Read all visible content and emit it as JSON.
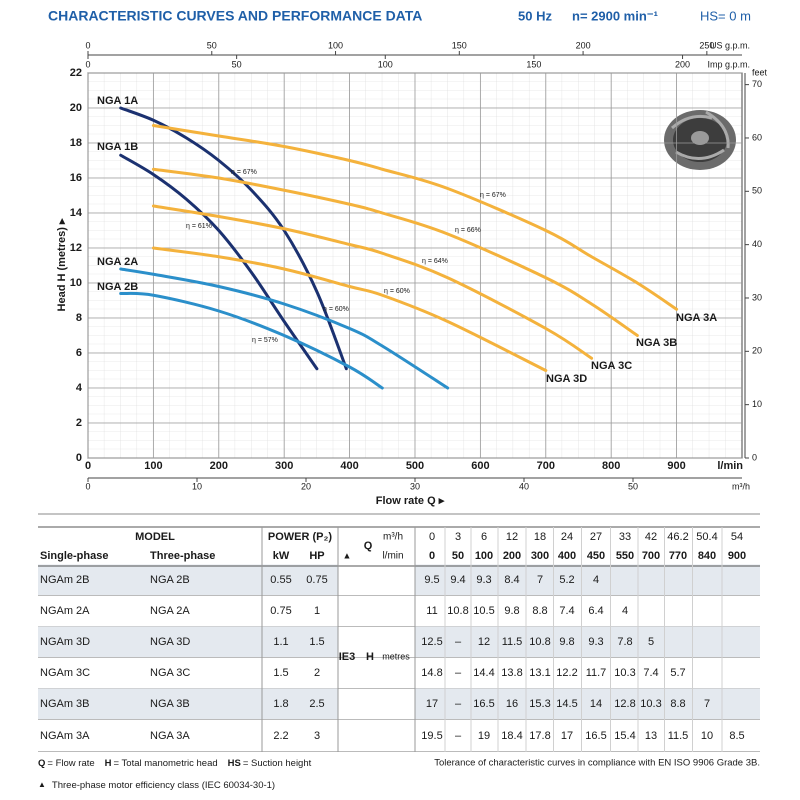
{
  "header": {
    "title": "CHARACTERISTIC CURVES AND PERFORMANCE DATA",
    "frequency": "50 Hz",
    "speed": "n= 2900 min⁻¹",
    "suction": "HS= 0 m"
  },
  "chart_data": {
    "type": "line",
    "xlabel": "Flow rate Q ▸",
    "ylabel": "Head H (metres) ▸",
    "x_unit": "l/min",
    "xlim": [
      0,
      1000
    ],
    "xticks": [
      0,
      100,
      200,
      300,
      400,
      500,
      600,
      700,
      800,
      900
    ],
    "ylim": [
      0,
      22
    ],
    "yticks": [
      0,
      2,
      4,
      6,
      8,
      10,
      12,
      14,
      16,
      18,
      20,
      22
    ],
    "grid": true,
    "secondary_axes": [
      {
        "label": "US g.p.m.",
        "side": "top",
        "lim": [
          0,
          264.2
        ],
        "ticks": [
          0,
          50,
          100,
          150,
          200,
          250
        ]
      },
      {
        "label": "Imp g.p.m.",
        "side": "top",
        "lim": [
          0,
          220
        ],
        "ticks": [
          0,
          50,
          100,
          150,
          200
        ]
      },
      {
        "label": "m³/h",
        "side": "bottom",
        "lim": [
          0,
          60
        ],
        "ticks": [
          0,
          10,
          20,
          30,
          40,
          50
        ]
      },
      {
        "label": "feet",
        "side": "right",
        "lim": [
          0,
          72.18
        ],
        "ticks": [
          0,
          10,
          20,
          30,
          40,
          50,
          60,
          70
        ]
      }
    ],
    "series": [
      {
        "name": "NGA 1A",
        "color": "#1b3170",
        "x": [
          50,
          100,
          150,
          200,
          250,
          300,
          350,
          395
        ],
        "values": [
          20,
          19.3,
          18.3,
          17,
          15.3,
          13,
          9.5,
          5.1
        ]
      },
      {
        "name": "NGA 1B",
        "color": "#1b3170",
        "x": [
          50,
          100,
          150,
          200,
          250,
          300,
          350
        ],
        "values": [
          17.3,
          16.2,
          14.8,
          13,
          10.6,
          7.8,
          5.1
        ]
      },
      {
        "name": "NGA 2A",
        "color": "#2b8fca",
        "x": [
          50,
          100,
          200,
          300,
          400,
          450,
          550
        ],
        "values": [
          10.8,
          10.5,
          9.8,
          8.8,
          7.4,
          6.4,
          4
        ]
      },
      {
        "name": "NGA 2B",
        "color": "#2b8fca",
        "x": [
          50,
          100,
          200,
          300,
          400,
          450
        ],
        "values": [
          9.4,
          9.3,
          8.4,
          7,
          5.2,
          4
        ]
      },
      {
        "name": "NGA 3A",
        "color": "#f4b23c",
        "x": [
          100,
          200,
          300,
          400,
          450,
          550,
          700,
          770,
          840,
          900
        ],
        "values": [
          19,
          18.4,
          17.8,
          17,
          16.5,
          15.4,
          13,
          11.5,
          10,
          8.5
        ]
      },
      {
        "name": "NGA 3B",
        "color": "#f4b23c",
        "x": [
          100,
          200,
          300,
          400,
          450,
          550,
          700,
          770,
          840
        ],
        "values": [
          16.5,
          16,
          15.3,
          14.5,
          14,
          12.8,
          10.3,
          8.8,
          7
        ]
      },
      {
        "name": "NGA 3C",
        "color": "#f4b23c",
        "x": [
          100,
          200,
          300,
          400,
          450,
          550,
          700,
          770
        ],
        "values": [
          14.4,
          13.8,
          13.1,
          12.2,
          11.7,
          10.3,
          7.4,
          5.7
        ]
      },
      {
        "name": "NGA 3D",
        "color": "#f4b23c",
        "x": [
          100,
          200,
          300,
          400,
          450,
          550,
          700
        ],
        "values": [
          12,
          11.5,
          10.8,
          9.8,
          9.3,
          7.8,
          5
        ]
      }
    ],
    "annotations": [
      "η = 67%",
      "η = 61%",
      "η = 60%",
      "η = 57%",
      "η = 67%",
      "η = 66%",
      "η = 64%",
      "η = 60%"
    ]
  },
  "table": {
    "model_header": "MODEL",
    "power_header": "POWER (P₂)",
    "single_phase": "Single-phase",
    "three_phase": "Three-phase",
    "kw": "kW",
    "hp": "HP",
    "efficiency_class": "▲",
    "q": "Q",
    "q_m3h_unit": "m³/h",
    "q_lmin_unit": "l/min",
    "q_m3h": [
      0,
      3,
      6,
      12,
      18,
      24,
      27,
      33,
      42,
      46.2,
      50.4,
      54
    ],
    "q_lmin": [
      0,
      50,
      100,
      200,
      300,
      400,
      450,
      550,
      700,
      770,
      840,
      900
    ],
    "ie3": "IE3",
    "h": "H",
    "h_unit": "metres",
    "rows": [
      {
        "single": "NGAm 2B",
        "three": "NGA 2B",
        "kw": 0.55,
        "hp": 0.75,
        "h": [
          9.5,
          9.4,
          9.3,
          8.4,
          7,
          5.2,
          4
        ]
      },
      {
        "single": "NGAm 2A",
        "three": "NGA 2A",
        "kw": 0.75,
        "hp": 1,
        "h": [
          11,
          10.8,
          10.5,
          9.8,
          8.8,
          7.4,
          6.4,
          4
        ]
      },
      {
        "single": "NGAm 3D",
        "three": "NGA 3D",
        "kw": 1.1,
        "hp": 1.5,
        "h": [
          12.5,
          "–",
          12,
          11.5,
          10.8,
          9.8,
          9.3,
          7.8,
          5
        ]
      },
      {
        "single": "NGAm 3C",
        "three": "NGA 3C",
        "kw": 1.5,
        "hp": 2,
        "h": [
          14.8,
          "–",
          14.4,
          13.8,
          13.1,
          12.2,
          11.7,
          10.3,
          7.4,
          5.7
        ]
      },
      {
        "single": "NGAm 3B",
        "three": "NGA 3B",
        "kw": 1.8,
        "hp": 2.5,
        "h": [
          17,
          "–",
          16.5,
          16,
          15.3,
          14.5,
          14,
          12.8,
          10.3,
          8.8,
          7
        ]
      },
      {
        "single": "NGAm 3A",
        "three": "NGA 3A",
        "kw": 2.2,
        "hp": 3,
        "h": [
          19.5,
          "–",
          19,
          18.4,
          17.8,
          17,
          16.5,
          15.4,
          13,
          11.5,
          10,
          8.5
        ]
      }
    ]
  },
  "footer": {
    "legend": [
      {
        "key": "Q",
        "text": "= Flow rate"
      },
      {
        "key": "H",
        "text": "= Total manometric head"
      },
      {
        "key": "HS",
        "text": "= Suction height"
      }
    ],
    "tolerance": "Tolerance of characteristic curves in compliance with EN ISO 9906 Grade 3B.",
    "efficiency_marker": "▲",
    "efficiency_note": "Three-phase motor efficiency class (IEC 60034-30-1)"
  }
}
